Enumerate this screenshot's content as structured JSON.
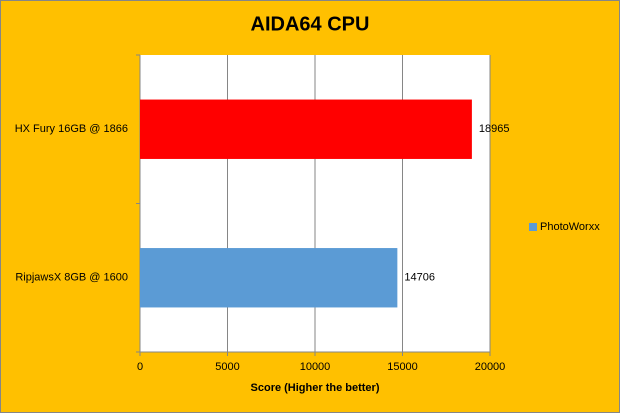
{
  "chart_data": {
    "type": "bar",
    "orientation": "horizontal",
    "title": "AIDA64 CPU",
    "x_label": "Score (Higher the better)",
    "categories": [
      "HX Fury 16GB @ 1866",
      "RipjawsX 8GB @ 1600"
    ],
    "series": [
      {
        "name": "PhotoWorxx",
        "color": "#5b9bd5",
        "bar_colors": [
          "#ff0000",
          "#5b9bd5"
        ],
        "values": [
          18965,
          14706
        ]
      }
    ],
    "xlim": [
      0,
      20000
    ],
    "xticks": [
      0,
      5000,
      10000,
      15000,
      20000
    ],
    "grid": true,
    "legend": "right"
  }
}
